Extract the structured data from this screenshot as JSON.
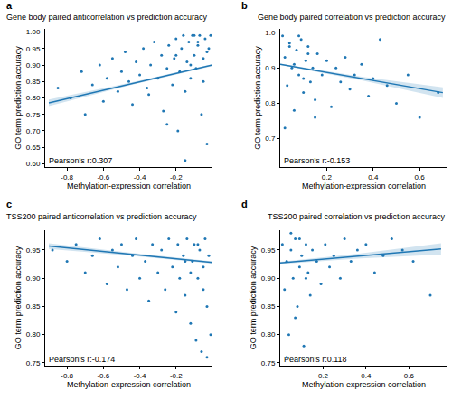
{
  "chart_data": [
    {
      "type": "scatter",
      "label": "a",
      "title": "Gene body paired anticorrelation vs prediction accuracy",
      "x_label": "Methylation-expression correlation",
      "y_label": "GO term prediction accuracy",
      "annotation": "Pearson's r:0.307",
      "color": "#1f77b4",
      "grid": false,
      "xlim": [
        -0.92,
        0.0
      ],
      "xticks": [
        -0.8,
        -0.6,
        -0.4,
        -0.2
      ],
      "ylim": [
        0.59,
        1.01
      ],
      "yticks": [
        {
          "value": 0.6,
          "label": "0.60"
        },
        0.65,
        {
          "value": 0.7,
          "label": "0.70"
        },
        0.75,
        {
          "value": 0.8,
          "label": "0.80"
        },
        0.85,
        {
          "value": 0.9,
          "label": "0.90"
        },
        0.95,
        {
          "value": 1.0,
          "label": "1.00"
        }
      ],
      "points": {
        "x": [
          -0.85,
          -0.78,
          -0.72,
          -0.7,
          -0.66,
          -0.62,
          -0.6,
          -0.58,
          -0.55,
          -0.52,
          -0.5,
          -0.48,
          -0.46,
          -0.44,
          -0.42,
          -0.4,
          -0.38,
          -0.36,
          -0.34,
          -0.32,
          -0.3,
          -0.28,
          -0.27,
          -0.25,
          -0.24,
          -0.22,
          -0.21,
          -0.2,
          -0.19,
          -0.18,
          -0.17,
          -0.16,
          -0.15,
          -0.14,
          -0.13,
          -0.12,
          -0.11,
          -0.1,
          -0.09,
          -0.08,
          -0.07,
          -0.06,
          -0.05,
          -0.04,
          -0.03,
          -0.02,
          -0.01,
          -0.15,
          -0.12,
          -0.08,
          -0.05,
          -0.03,
          -0.1,
          -0.2,
          -0.25,
          -0.35
        ],
        "y": [
          0.83,
          0.8,
          0.88,
          0.75,
          0.84,
          0.9,
          0.79,
          0.86,
          0.92,
          0.82,
          0.88,
          0.94,
          0.85,
          0.78,
          0.91,
          0.87,
          0.95,
          0.83,
          0.9,
          0.97,
          0.86,
          0.93,
          0.76,
          0.89,
          0.96,
          0.84,
          0.92,
          0.98,
          0.7,
          0.88,
          0.95,
          0.99,
          0.82,
          0.91,
          0.97,
          0.86,
          0.99,
          0.93,
          0.89,
          0.96,
          0.99,
          0.75,
          0.92,
          0.98,
          0.66,
          0.95,
          0.99,
          0.61,
          0.9,
          0.97,
          0.85,
          0.94,
          0.99,
          0.93,
          0.72,
          0.81
        ]
      },
      "fit": {
        "x": [
          -0.9,
          -0.45,
          0.0
        ],
        "y": [
          0.785,
          0.843,
          0.9
        ],
        "lower": [
          0.775,
          0.839,
          0.897
        ],
        "upper": [
          0.795,
          0.847,
          0.903
        ]
      }
    },
    {
      "type": "scatter",
      "label": "b",
      "title": "Gene body paired correlation vs prediction accuracy",
      "x_label": "Methylation-expression correlation",
      "y_label": "GO term prediction accuracy",
      "annotation": "Pearson's r:-0.153",
      "color": "#1f77b4",
      "grid": false,
      "xlim": [
        0.0,
        0.72
      ],
      "xticks": [
        0.2,
        0.4,
        0.6
      ],
      "ylim": [
        0.62,
        1.01
      ],
      "yticks": [
        0.7,
        0.8,
        0.9,
        {
          "value": 1.0,
          "label": "1.0"
        }
      ],
      "points": {
        "x": [
          0.01,
          0.02,
          0.03,
          0.04,
          0.05,
          0.06,
          0.07,
          0.08,
          0.09,
          0.1,
          0.11,
          0.12,
          0.13,
          0.14,
          0.15,
          0.16,
          0.18,
          0.2,
          0.22,
          0.24,
          0.26,
          0.28,
          0.3,
          0.32,
          0.35,
          0.38,
          0.4,
          0.43,
          0.46,
          0.5,
          0.55,
          0.6,
          0.68,
          0.02,
          0.04,
          0.06,
          0.08,
          0.1,
          0.12,
          0.15
        ],
        "y": [
          0.99,
          0.93,
          0.85,
          0.97,
          0.9,
          0.78,
          0.95,
          0.88,
          0.98,
          0.83,
          0.92,
          0.96,
          0.86,
          0.9,
          0.81,
          0.94,
          0.88,
          0.92,
          0.79,
          0.9,
          0.86,
          0.93,
          0.84,
          0.88,
          0.91,
          0.82,
          0.87,
          0.98,
          0.85,
          0.8,
          0.88,
          0.76,
          0.83,
          0.73,
          0.96,
          0.91,
          0.99,
          0.87,
          0.94,
          0.76
        ]
      },
      "fit": {
        "x": [
          0.0,
          0.35,
          0.7
        ],
        "y": [
          0.91,
          0.87,
          0.83
        ],
        "lower": [
          0.908,
          0.865,
          0.815
        ],
        "upper": [
          0.912,
          0.875,
          0.845
        ]
      }
    },
    {
      "type": "scatter",
      "label": "c",
      "title": "TSS200 paired anticorrelation vs prediction accuracy",
      "x_label": "Methylation-expression correlation",
      "y_label": "GO term prediction accuracy",
      "annotation": "Pearson's r:-0.174",
      "color": "#1f77b4",
      "grid": false,
      "xlim": [
        -0.92,
        0.0
      ],
      "xticks": [
        -0.8,
        -0.6,
        -0.4,
        -0.2
      ],
      "ylim": [
        0.745,
        0.985
      ],
      "yticks": [
        0.75,
        {
          "value": 0.8,
          "label": "0.80"
        },
        0.85,
        {
          "value": 0.9,
          "label": "0.90"
        },
        0.95
      ],
      "points": {
        "x": [
          -0.88,
          -0.8,
          -0.75,
          -0.7,
          -0.66,
          -0.62,
          -0.58,
          -0.55,
          -0.52,
          -0.5,
          -0.47,
          -0.44,
          -0.42,
          -0.4,
          -0.37,
          -0.35,
          -0.33,
          -0.3,
          -0.28,
          -0.26,
          -0.24,
          -0.22,
          -0.2,
          -0.19,
          -0.18,
          -0.16,
          -0.15,
          -0.14,
          -0.12,
          -0.11,
          -0.1,
          -0.09,
          -0.08,
          -0.07,
          -0.06,
          -0.05,
          -0.04,
          -0.03,
          -0.02,
          -0.01,
          -0.12,
          -0.08,
          -0.05,
          -0.03,
          -0.15
        ],
        "y": [
          0.95,
          0.93,
          0.96,
          0.91,
          0.94,
          0.97,
          0.89,
          0.95,
          0.92,
          0.96,
          0.88,
          0.94,
          0.97,
          0.9,
          0.93,
          0.86,
          0.96,
          0.91,
          0.95,
          0.88,
          0.97,
          0.92,
          0.84,
          0.96,
          0.9,
          0.94,
          0.87,
          0.97,
          0.82,
          0.93,
          0.96,
          0.79,
          0.9,
          0.95,
          0.77,
          0.92,
          0.97,
          0.85,
          0.94,
          0.8,
          0.91,
          0.96,
          0.88,
          0.76,
          0.93
        ]
      },
      "fit": {
        "x": [
          -0.9,
          -0.45,
          0.0
        ],
        "y": [
          0.957,
          0.9425,
          0.928
        ],
        "lower": [
          0.952,
          0.94,
          0.926
        ],
        "upper": [
          0.962,
          0.945,
          0.93
        ]
      }
    },
    {
      "type": "scatter",
      "label": "d",
      "title": "TSS200 paired correlation vs prediction accuracy",
      "x_label": "Methylation-expression correlation",
      "y_label": "GO term prediction accuracy",
      "annotation": "Pearson's r:0.118",
      "color": "#1f77b4",
      "grid": false,
      "xlim": [
        0.0,
        0.78
      ],
      "xticks": [
        0.2,
        0.4,
        0.6
      ],
      "ylim": [
        0.745,
        0.985
      ],
      "yticks": [
        0.75,
        {
          "value": 0.8,
          "label": "0.80"
        },
        0.85,
        {
          "value": 0.9,
          "label": "0.90"
        },
        0.95
      ],
      "points": {
        "x": [
          0.01,
          0.02,
          0.03,
          0.04,
          0.05,
          0.06,
          0.07,
          0.08,
          0.09,
          0.1,
          0.11,
          0.12,
          0.13,
          0.14,
          0.15,
          0.17,
          0.19,
          0.21,
          0.23,
          0.25,
          0.28,
          0.3,
          0.33,
          0.36,
          0.4,
          0.44,
          0.48,
          0.52,
          0.57,
          0.62,
          0.7,
          0.03,
          0.05,
          0.07,
          0.09,
          0.12
        ],
        "y": [
          0.96,
          0.88,
          0.93,
          0.8,
          0.95,
          0.9,
          0.97,
          0.85,
          0.92,
          0.94,
          0.78,
          0.96,
          0.91,
          0.87,
          0.95,
          0.93,
          0.89,
          0.96,
          0.92,
          0.94,
          0.9,
          0.97,
          0.93,
          0.95,
          0.96,
          0.91,
          0.94,
          0.97,
          0.95,
          0.93,
          0.87,
          0.76,
          0.98,
          0.83,
          0.97,
          0.9
        ]
      },
      "fit": {
        "x": [
          0.0,
          0.375,
          0.75
        ],
        "y": [
          0.927,
          0.9395,
          0.952
        ],
        "lower": [
          0.925,
          0.935,
          0.942
        ],
        "upper": [
          0.929,
          0.944,
          0.962
        ]
      }
    }
  ]
}
